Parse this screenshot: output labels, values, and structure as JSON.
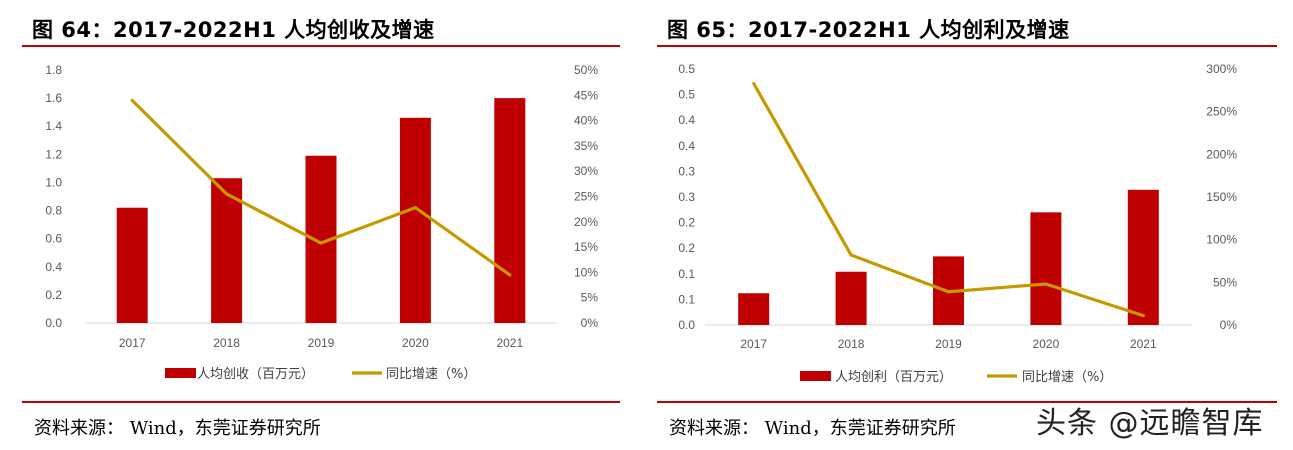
{
  "charts": [
    {
      "title": "图 64：2017-2022H1 人均创收及增速",
      "source": "资料来源：  Wind，东莞证券研究所",
      "chart_data": {
        "type": "bar",
        "categories": [
          "2017",
          "2018",
          "2019",
          "2020",
          "2021"
        ],
        "series": [
          {
            "name": "人均创收（百万元）",
            "type": "bar",
            "axis": "left",
            "color": "#c00000",
            "values": [
              0.82,
              1.03,
              1.19,
              1.46,
              1.6
            ]
          },
          {
            "name": "同比增速（%）",
            "type": "line",
            "axis": "right",
            "color": "#c49a00",
            "values": [
              0.44,
              0.255,
              0.158,
              0.228,
              0.095
            ]
          }
        ],
        "ylim": [
          0,
          1.8
        ],
        "yticks": [
          "0.0",
          "0.2",
          "0.4",
          "0.6",
          "0.8",
          "1.0",
          "1.2",
          "1.4",
          "1.6",
          "1.8"
        ],
        "y2lim": [
          0,
          0.5
        ],
        "y2ticks": [
          "0%",
          "5%",
          "10%",
          "15%",
          "20%",
          "25%",
          "30%",
          "35%",
          "40%",
          "45%",
          "50%"
        ],
        "legend": "bottom"
      }
    },
    {
      "title": "图 65：2017-2022H1 人均创利及增速",
      "source": "资料来源：  Wind，东莞证券研究所",
      "chart_data": {
        "type": "bar",
        "categories": [
          "2017",
          "2018",
          "2019",
          "2020",
          "2021"
        ],
        "series": [
          {
            "name": "人均创利（百万元）",
            "type": "bar",
            "axis": "left",
            "color": "#c00000",
            "values": [
              0.062,
              0.104,
              0.134,
              0.22,
              0.264
            ]
          },
          {
            "name": "同比增速（%）",
            "type": "line",
            "axis": "right",
            "color": "#c49a00",
            "values": [
              2.83,
              0.82,
              0.39,
              0.48,
              0.11
            ]
          }
        ],
        "ylim": [
          0,
          0.5
        ],
        "yticks": [
          "0.0",
          "0.1",
          "0.1",
          "0.2",
          "0.2",
          "0.3",
          "0.3",
          "0.4",
          "0.4",
          "0.5",
          "0.5"
        ],
        "y2lim": [
          0,
          3.0
        ],
        "y2ticks": [
          "0%",
          "50%",
          "100%",
          "150%",
          "200%",
          "250%",
          "300%"
        ],
        "legend": "bottom"
      }
    }
  ],
  "watermark": "头条 @远瞻智库"
}
